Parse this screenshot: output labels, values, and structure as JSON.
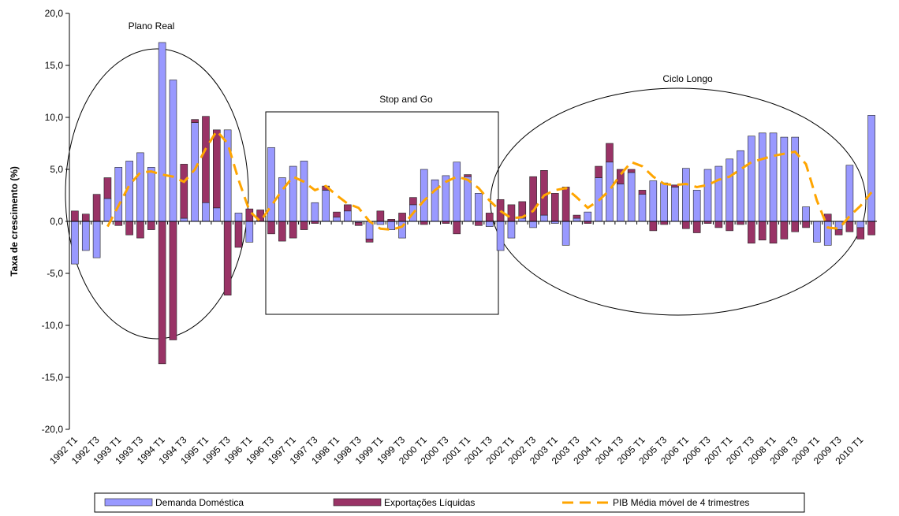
{
  "chart_data": {
    "type": "bar",
    "y_label": "Taxa de crescimento (%)",
    "annotations": [
      "Plano Real",
      "Stop and Go",
      "Ciclo Longo"
    ],
    "categories": [
      "1992 T1",
      null,
      "1992 T3",
      null,
      "1993 T1",
      null,
      "1993 T3",
      null,
      "1994 T1",
      null,
      "1994 T3",
      null,
      "1995 T1",
      null,
      "1995 T3",
      null,
      "1996 T1",
      null,
      "1996 T3",
      null,
      "1997 T1",
      null,
      "1997 T3",
      null,
      "1998 T1",
      null,
      "1998 T3",
      null,
      "1999 T1",
      null,
      "1999 T3",
      null,
      "2000 T1",
      null,
      "2000 T3",
      null,
      "2001 T1",
      null,
      "2001 T3",
      null,
      "2002 T1",
      null,
      "2002 T3",
      null,
      "2003 T1",
      null,
      "2003 T3",
      null,
      "2004 T1",
      null,
      "2004 T3",
      null,
      "2005 T1",
      null,
      "2005 T3",
      null,
      "2006 T1",
      null,
      "2006 T3",
      null,
      "2007 T1",
      null,
      "2007 T3",
      null,
      "2008 T1",
      null,
      "2008 T3",
      null,
      "2009 T1",
      null,
      "2009 T3",
      null,
      "2010 T1",
      null
    ],
    "series": [
      {
        "name": "Demanda Doméstica",
        "color": "#9999ff",
        "kind": "bar",
        "values": [
          -4.1,
          -2.8,
          -3.5,
          2.2,
          5.2,
          5.8,
          6.6,
          5.2,
          17.2,
          13.6,
          0.3,
          9.5,
          1.8,
          1.3,
          8.8,
          0.8,
          -2.0,
          0.0,
          7.1,
          4.2,
          5.3,
          5.8,
          1.8,
          3.0,
          0.4,
          1.0,
          -0.1,
          -1.7,
          -0.3,
          -0.8,
          -1.6,
          1.6,
          5.0,
          4.0,
          4.4,
          5.7,
          4.3,
          2.7,
          -0.5,
          -2.8,
          -1.6,
          0.3,
          -0.6,
          0.6,
          -0.2,
          -2.3,
          0.3,
          0.9,
          4.2,
          5.7,
          3.6,
          4.7,
          2.6,
          3.9,
          3.7,
          3.3,
          5.1,
          3.0,
          5.0,
          5.3,
          6.0,
          6.8,
          8.2,
          8.5,
          8.5,
          8.1,
          8.1,
          1.4,
          -2.0,
          -2.3,
          -0.8,
          5.4,
          -0.6,
          10.2
        ]
      },
      {
        "name": "Exportações Líquidas",
        "color": "#993366",
        "kind": "bar",
        "values": [
          1.0,
          0.7,
          2.6,
          2.0,
          -0.4,
          -1.3,
          -1.6,
          -0.8,
          -13.7,
          -11.4,
          5.2,
          0.3,
          8.3,
          7.5,
          -7.1,
          -2.5,
          1.2,
          1.1,
          -1.2,
          -1.9,
          -1.6,
          -0.8,
          -0.2,
          0.4,
          0.5,
          0.6,
          -0.3,
          -0.3,
          1.0,
          0.2,
          0.8,
          0.7,
          -0.3,
          0.0,
          -0.2,
          -1.2,
          0.2,
          -0.4,
          0.8,
          2.1,
          1.6,
          1.6,
          4.3,
          4.3,
          2.7,
          3.3,
          0.3,
          -0.2,
          1.1,
          1.8,
          1.4,
          0.3,
          0.4,
          -0.9,
          -0.3,
          0.2,
          -0.7,
          -1.1,
          -0.2,
          -0.6,
          -0.9,
          -0.3,
          -2.1,
          -1.8,
          -2.1,
          -1.7,
          -1.0,
          -0.6,
          0.0,
          0.7,
          -0.5,
          -1.0,
          -1.1,
          -1.3
        ]
      },
      {
        "name": "PIB Média móvel de 4 trimestres",
        "color": "#ffa500",
        "kind": "line",
        "values": [
          null,
          null,
          null,
          -0.5,
          1.5,
          3.5,
          4.7,
          4.8,
          4.5,
          4.3,
          3.8,
          5.0,
          7.0,
          8.7,
          7.5,
          4.0,
          1.0,
          0.0,
          1.5,
          3.0,
          4.3,
          3.8,
          3.0,
          3.4,
          2.5,
          1.7,
          1.3,
          0.0,
          -0.7,
          -0.8,
          -0.5,
          0.8,
          2.0,
          3.0,
          3.8,
          4.3,
          4.0,
          3.2,
          2.0,
          1.0,
          0.3,
          0.4,
          1.0,
          2.5,
          3.0,
          3.2,
          2.3,
          1.3,
          2.0,
          3.0,
          4.5,
          5.7,
          5.3,
          4.3,
          3.6,
          3.5,
          3.6,
          3.3,
          3.5,
          4.0,
          4.3,
          5.0,
          5.7,
          6.0,
          6.3,
          6.5,
          6.7,
          5.5,
          2.0,
          -0.6,
          -0.7,
          0.5,
          1.5,
          2.8
        ]
      }
    ],
    "ylim": [
      -20,
      20
    ],
    "yticks": [
      {
        "value": -20,
        "label": "-20,0"
      },
      {
        "value": -15,
        "label": "-15,0"
      },
      {
        "value": -10,
        "label": "-10,0"
      },
      {
        "value": -5,
        "label": "-5,0"
      },
      {
        "value": 0,
        "label": "0,0"
      },
      {
        "value": 5,
        "label": "5,0"
      },
      {
        "value": 10,
        "label": "10,0"
      },
      {
        "value": 15,
        "label": "15,0"
      },
      {
        "value": 20,
        "label": "20,0"
      }
    ],
    "grid": false,
    "legend": "bottom"
  }
}
